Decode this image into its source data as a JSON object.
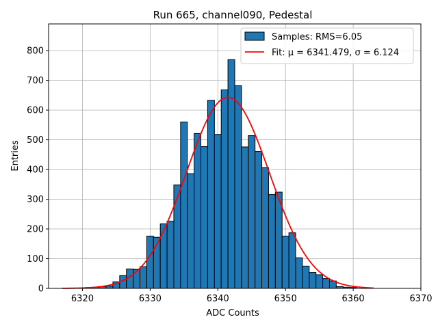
{
  "chart_data": {
    "type": "bar",
    "title": "Run 665, channel090, Pedestal",
    "xlabel": "ADC Counts",
    "ylabel": "Entries",
    "xlim": [
      6315,
      6370
    ],
    "ylim": [
      0,
      890
    ],
    "xticks": [
      6320,
      6330,
      6340,
      6350,
      6360,
      6370
    ],
    "yticks": [
      0,
      100,
      200,
      300,
      400,
      500,
      600,
      700,
      800
    ],
    "grid": true,
    "legend_position": "top-right",
    "bin_width": 1,
    "series": [
      {
        "name": "Samples: RMS=6.05",
        "kind": "histogram",
        "color": "#1f77b4",
        "edge_color": "#000000",
        "bins": [
          {
            "x": 6321,
            "y": 3
          },
          {
            "x": 6322,
            "y": 4
          },
          {
            "x": 6323,
            "y": 6
          },
          {
            "x": 6324,
            "y": 8
          },
          {
            "x": 6325,
            "y": 22
          },
          {
            "x": 6326,
            "y": 43
          },
          {
            "x": 6327,
            "y": 65
          },
          {
            "x": 6328,
            "y": 64
          },
          {
            "x": 6329,
            "y": 73
          },
          {
            "x": 6330,
            "y": 176
          },
          {
            "x": 6331,
            "y": 172
          },
          {
            "x": 6332,
            "y": 217
          },
          {
            "x": 6333,
            "y": 226
          },
          {
            "x": 6334,
            "y": 348
          },
          {
            "x": 6335,
            "y": 560
          },
          {
            "x": 6336,
            "y": 386
          },
          {
            "x": 6337,
            "y": 521
          },
          {
            "x": 6338,
            "y": 477
          },
          {
            "x": 6339,
            "y": 633
          },
          {
            "x": 6340,
            "y": 518
          },
          {
            "x": 6341,
            "y": 668
          },
          {
            "x": 6342,
            "y": 770
          },
          {
            "x": 6343,
            "y": 682
          },
          {
            "x": 6344,
            "y": 476
          },
          {
            "x": 6345,
            "y": 514
          },
          {
            "x": 6346,
            "y": 461
          },
          {
            "x": 6347,
            "y": 406
          },
          {
            "x": 6348,
            "y": 316
          },
          {
            "x": 6349,
            "y": 324
          },
          {
            "x": 6350,
            "y": 176
          },
          {
            "x": 6351,
            "y": 187
          },
          {
            "x": 6352,
            "y": 103
          },
          {
            "x": 6353,
            "y": 75
          },
          {
            "x": 6354,
            "y": 54
          },
          {
            "x": 6355,
            "y": 46
          },
          {
            "x": 6356,
            "y": 33
          },
          {
            "x": 6357,
            "y": 25
          },
          {
            "x": 6358,
            "y": 6
          },
          {
            "x": 6359,
            "y": 4
          },
          {
            "x": 6360,
            "y": 3
          }
        ]
      },
      {
        "name": "Fit: μ = 6341.479, σ = 6.124",
        "kind": "gaussian",
        "color": "#ff0000",
        "mu": 6341.479,
        "sigma": 6.124,
        "amplitude": 643,
        "x_range": [
          6317,
          6363
        ]
      }
    ]
  }
}
